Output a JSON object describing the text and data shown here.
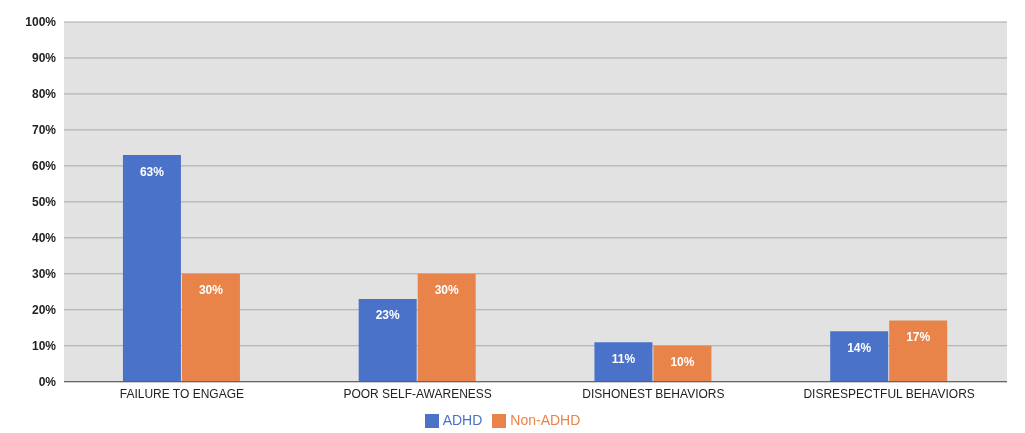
{
  "chart_data": {
    "type": "bar",
    "categories": [
      "FAILURE TO ENGAGE",
      "POOR SELF-AWARENESS",
      "DISHONEST BEHAVIORS",
      "DISRESPECTFUL BEHAVIORS"
    ],
    "series": [
      {
        "name": "ADHD",
        "color": "#4a72c8",
        "values": [
          63,
          23,
          11,
          14
        ],
        "value_labels": [
          "63%",
          "23%",
          "11%",
          "14%"
        ]
      },
      {
        "name": "Non-ADHD",
        "color": "#e8834a",
        "values": [
          30,
          30,
          10,
          17
        ],
        "value_labels": [
          "30%",
          "30%",
          "10%",
          "17%"
        ]
      }
    ],
    "ylim": [
      0,
      100
    ],
    "yticks": [
      {
        "value": 0,
        "label": "0%"
      },
      {
        "value": 10,
        "label": "10%"
      },
      {
        "value": 20,
        "label": "20%"
      },
      {
        "value": 30,
        "label": "30%"
      },
      {
        "value": 40,
        "label": "40%"
      },
      {
        "value": 50,
        "label": "50%"
      },
      {
        "value": 60,
        "label": "60%"
      },
      {
        "value": 70,
        "label": "70%"
      },
      {
        "value": 80,
        "label": "80%"
      },
      {
        "value": 90,
        "label": "90%"
      },
      {
        "value": 100,
        "label": "100%"
      }
    ],
    "grid": "y",
    "legend": "bottom"
  }
}
